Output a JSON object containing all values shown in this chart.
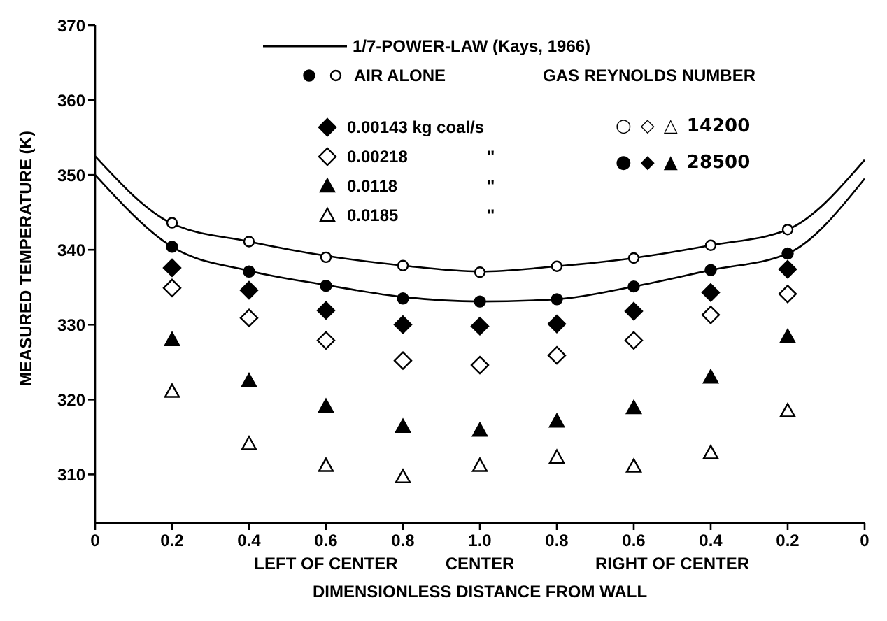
{
  "chart_data": {
    "type": "scatter",
    "xlabel": "DIMENSIONLESS DISTANCE FROM WALL",
    "ylabel": "MEASURED TEMPERATURE (K)",
    "categories": [
      "0",
      "0.2",
      "0.4",
      "0.6",
      "0.8",
      "1.0",
      "0.8",
      "0.6",
      "0.4",
      "0.2",
      "0"
    ],
    "ylim": [
      303.5,
      370
    ],
    "yticks": [
      310,
      320,
      330,
      340,
      350,
      360,
      370
    ],
    "legend": "top",
    "annotations": [
      "LEFT OF CENTER",
      "CENTER",
      "RIGHT OF CENTER",
      "GAS REYNOLDS NUMBER",
      "○ ◇ △ 14200",
      "● ◆ ▲ 28500",
      "\"",
      "\"",
      "\""
    ],
    "series": [
      {
        "type": "line",
        "name": "1/7-POWER-LAW (Kays, 1966)",
        "color": "#000000",
        "marker": "none",
        "values": [
          352.5,
          343.5,
          341.1,
          339.2,
          337.9,
          337.1,
          337.8,
          338.9,
          340.6,
          342.7,
          352
        ]
      },
      {
        "type": "line",
        "color": "#000000",
        "marker": "none",
        "values": [
          350,
          340.4,
          337.2,
          335.3,
          333.7,
          333.1,
          333.4,
          335.1,
          337.3,
          339.5,
          349.5
        ]
      },
      {
        "name": "AIR ALONE",
        "color": "#ffffff",
        "marker": "circle",
        "values": [
          null,
          343.6,
          341.1,
          339,
          337.9,
          337,
          337.8,
          338.9,
          340.6,
          342.7,
          null
        ]
      },
      {
        "color": "#000000",
        "marker": "circle",
        "values": [
          null,
          340.4,
          337.1,
          335.2,
          333.5,
          333.1,
          333.4,
          335.1,
          337.3,
          339.5,
          null
        ]
      },
      {
        "name": "0.00143 kg coal/s",
        "color": "#000000",
        "marker": "diamond",
        "values": [
          null,
          337.6,
          334.6,
          331.9,
          330,
          329.8,
          330.1,
          331.8,
          334.3,
          337.4,
          null
        ]
      },
      {
        "name": "0.00218",
        "color": "#ffffff",
        "marker": "diamond",
        "values": [
          null,
          334.9,
          330.9,
          327.9,
          325.2,
          324.6,
          325.9,
          327.9,
          331.3,
          334.1,
          null
        ]
      },
      {
        "name": "0.0118",
        "color": "#000000",
        "marker": "triangle",
        "values": [
          null,
          328,
          322.5,
          319.1,
          316.4,
          315.9,
          317.1,
          318.9,
          323,
          328.4,
          null
        ]
      },
      {
        "name": "0.0185",
        "color": "#ffffff",
        "marker": "triangle",
        "values": [
          null,
          321.1,
          314.1,
          311.2,
          309.7,
          311.2,
          312.3,
          311.1,
          312.9,
          318.5,
          null
        ]
      }
    ]
  }
}
